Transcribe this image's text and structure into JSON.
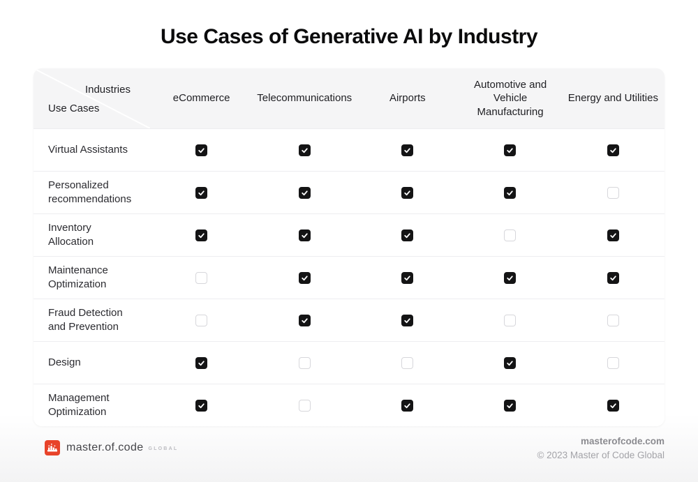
{
  "title": "Use Cases of Generative AI by Industry",
  "chart_data": {
    "type": "table",
    "title": "Use Cases of Generative AI by Industry",
    "column_axis_label": "Industries",
    "row_axis_label": "Use Cases",
    "columns": [
      "eCommerce",
      "Telecommunications",
      "Airports",
      "Automotive and Vehicle Manufacturing",
      "Energy and Utilities"
    ],
    "rows": [
      "Virtual Assistants",
      "Personalized recommendations",
      "Inventory Allocation",
      "Maintenance Optimization",
      "Fraud Detection and Prevention",
      "Design",
      "Management Optimization"
    ],
    "values": [
      [
        true,
        true,
        true,
        true,
        true
      ],
      [
        true,
        true,
        true,
        true,
        false
      ],
      [
        true,
        true,
        true,
        false,
        true
      ],
      [
        false,
        true,
        true,
        true,
        true
      ],
      [
        false,
        true,
        true,
        false,
        false
      ],
      [
        true,
        false,
        false,
        true,
        false
      ],
      [
        true,
        false,
        true,
        true,
        true
      ]
    ]
  },
  "table": {
    "corner_top": "Industries",
    "corner_bottom": "Use Cases",
    "columns_display": [
      "eCommerce",
      "Telecommunications",
      "Airports",
      "Automotive and\nVehicle\nManufacturing",
      "Energy and Utilities"
    ],
    "rows": [
      {
        "label": "Virtual Assistants",
        "display": "Virtual Assistants",
        "checks": [
          true,
          true,
          true,
          true,
          true
        ]
      },
      {
        "label": "Personalized recommendations",
        "display": "Personalized\nrecommendations",
        "checks": [
          true,
          true,
          true,
          true,
          false
        ]
      },
      {
        "label": "Inventory Allocation",
        "display": "Inventory\nAllocation",
        "checks": [
          true,
          true,
          true,
          false,
          true
        ]
      },
      {
        "label": "Maintenance Optimization",
        "display": "Maintenance\nOptimization",
        "checks": [
          false,
          true,
          true,
          true,
          true
        ]
      },
      {
        "label": "Fraud Detection and Prevention",
        "display": "Fraud Detection\nand Prevention",
        "checks": [
          false,
          true,
          true,
          false,
          false
        ]
      },
      {
        "label": "Design",
        "display": "Design",
        "checks": [
          true,
          false,
          false,
          true,
          false
        ]
      },
      {
        "label": "Management Optimization",
        "display": "Management\nOptimization",
        "checks": [
          true,
          false,
          true,
          true,
          true
        ]
      }
    ]
  },
  "footer": {
    "brand_name": "master.of.code",
    "brand_suffix": "GLOBAL",
    "website": "masterofcode.com",
    "copyright": "© 2023 Master of Code Global"
  },
  "colors": {
    "brand_red": "#e8432a",
    "checkbox_checked": "#141415",
    "header_bg": "#f5f5f6"
  }
}
